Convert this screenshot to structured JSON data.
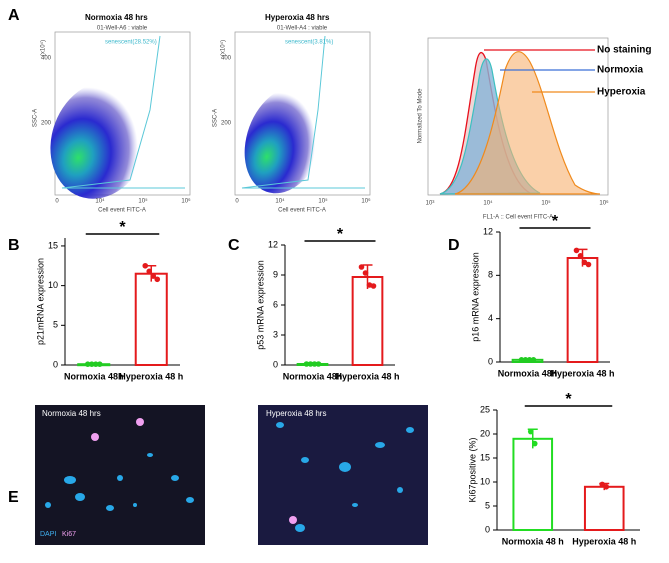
{
  "panel_labels": [
    "A",
    "B",
    "C",
    "D",
    "E"
  ],
  "flow": [
    {
      "title": "Normoxia 48 hrs",
      "gate_header": "01-Well-A6 : viable",
      "gate": "senescent(28.52%)",
      "xlabel": "Cell event FITC-A",
      "ylabel": "SSC-A",
      "y_unit": "(x10⁴)",
      "xticks": [
        "0",
        "10⁴",
        "10⁵",
        "10⁶"
      ],
      "yticks": [
        "400",
        "200"
      ]
    },
    {
      "title": "Hyperoxia 48 hrs",
      "gate_header": "01-Well-A4 : viable",
      "gate": "senescent(3.81%)",
      "xlabel": "Cell event FITC-A",
      "ylabel": "SSC-A",
      "y_unit": "(x10⁴)",
      "xticks": [
        "0",
        "10⁴",
        "10⁵",
        "10⁶"
      ],
      "yticks": [
        "400",
        "200"
      ]
    }
  ],
  "histogram": {
    "ylabel": "Normalized To Mode",
    "xlabel": "FL1-A :: Cell event FITC-A",
    "xticks": [
      "10³",
      "10⁴",
      "10⁵",
      "10⁶"
    ],
    "legend": [
      {
        "name": "No staining",
        "color": "#e8101c"
      },
      {
        "name": "Normoxia",
        "color": "#3b6fd8"
      },
      {
        "name": "Hyperoxia",
        "color": "#f08a1c"
      }
    ]
  },
  "images": [
    {
      "title": "Normoxia 48 hrs",
      "stain_1": "DAPI",
      "stain_2": "Ki67"
    },
    {
      "title": "Hyperoxia 48 hrs"
    }
  ],
  "chart_data": [
    {
      "type": "bar",
      "ylabel": "p21mRNA expression",
      "categories": [
        "Normoxia 48h",
        "Hyperoxia 48 h"
      ],
      "colors": [
        "#22cc22",
        "#e41a1c"
      ],
      "values": [
        0.1,
        11.5
      ],
      "errors": [
        0.1,
        1.0
      ],
      "points": [
        [
          0.1,
          0.1,
          0.1,
          0.1
        ],
        [
          12.5,
          11.8,
          11.2,
          10.8
        ]
      ],
      "ylim": [
        0,
        16
      ],
      "yticks": [
        0,
        5,
        10,
        15
      ],
      "significance": "*"
    },
    {
      "type": "bar",
      "ylabel": "p53 mRNA expression",
      "categories": [
        "Normoxia 48h",
        "Hyperoxia 48 h"
      ],
      "colors": [
        "#22cc22",
        "#e41a1c"
      ],
      "values": [
        0.1,
        8.8
      ],
      "errors": [
        0.1,
        1.2
      ],
      "points": [
        [
          0.1,
          0.1,
          0.1,
          0.1
        ],
        [
          9.8,
          9.2,
          8.0,
          7.9
        ]
      ],
      "ylim": [
        0,
        12
      ],
      "yticks": [
        0,
        3,
        6,
        9,
        12
      ],
      "significance": "*"
    },
    {
      "type": "bar",
      "ylabel": "p16 mRNA expression",
      "categories": [
        "Normoxia 48h",
        "Hyperoxia 48 h"
      ],
      "colors": [
        "#22cc22",
        "#e41a1c"
      ],
      "values": [
        0.2,
        9.6
      ],
      "errors": [
        0.1,
        0.8
      ],
      "points": [
        [
          0.2,
          0.2,
          0.2,
          0.2
        ],
        [
          10.3,
          9.8,
          9.2,
          9.0
        ]
      ],
      "ylim": [
        0,
        12
      ],
      "yticks": [
        0,
        4,
        8,
        12
      ],
      "significance": "*"
    },
    {
      "type": "bar",
      "ylabel": "Ki67positive (%)",
      "categories": [
        "Normoxia 48 h",
        "Hyperoxia 48 h"
      ],
      "colors": [
        "#22dd22",
        "#e41a1c"
      ],
      "values": [
        19,
        9
      ],
      "errors": [
        2,
        0.7
      ],
      "points": [
        [
          20.5,
          18
        ],
        [
          9.5,
          9.0
        ]
      ],
      "ylim": [
        0,
        25
      ],
      "yticks": [
        0,
        5,
        10,
        15,
        20,
        25
      ],
      "significance": "*"
    }
  ]
}
